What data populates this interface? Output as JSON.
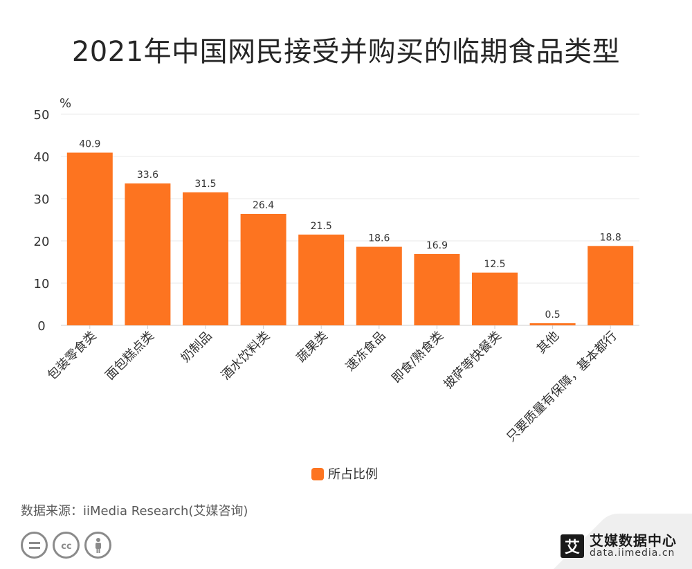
{
  "chart_data": {
    "type": "bar",
    "title": "2021年中国网民接受并购买的临期食品类型",
    "ylabel": "%",
    "ylim": [
      0,
      50
    ],
    "yticks": [
      0,
      10,
      20,
      30,
      40,
      50
    ],
    "grid": true,
    "categories": [
      "包装零食类",
      "面包糕点类",
      "奶制品",
      "酒水饮料类",
      "蔬果类",
      "速冻食品",
      "即食/熟食类",
      "披萨等快餐类",
      "其他",
      "只要质量有保障，基本都行"
    ],
    "series": [
      {
        "name": "所占比例",
        "values": [
          40.9,
          33.6,
          31.5,
          26.4,
          21.5,
          18.6,
          16.9,
          12.5,
          0.5,
          18.8
        ],
        "color": "#fd7420"
      }
    ],
    "legend_position": "bottom-center"
  },
  "source": "数据来源：iiMedia Research(艾媒咨询)",
  "logo": {
    "mark": "艾",
    "name": "艾媒数据中心",
    "url": "data.iimedia.cn"
  },
  "icons": [
    "equals-icon",
    "cc-icon",
    "person-icon"
  ]
}
